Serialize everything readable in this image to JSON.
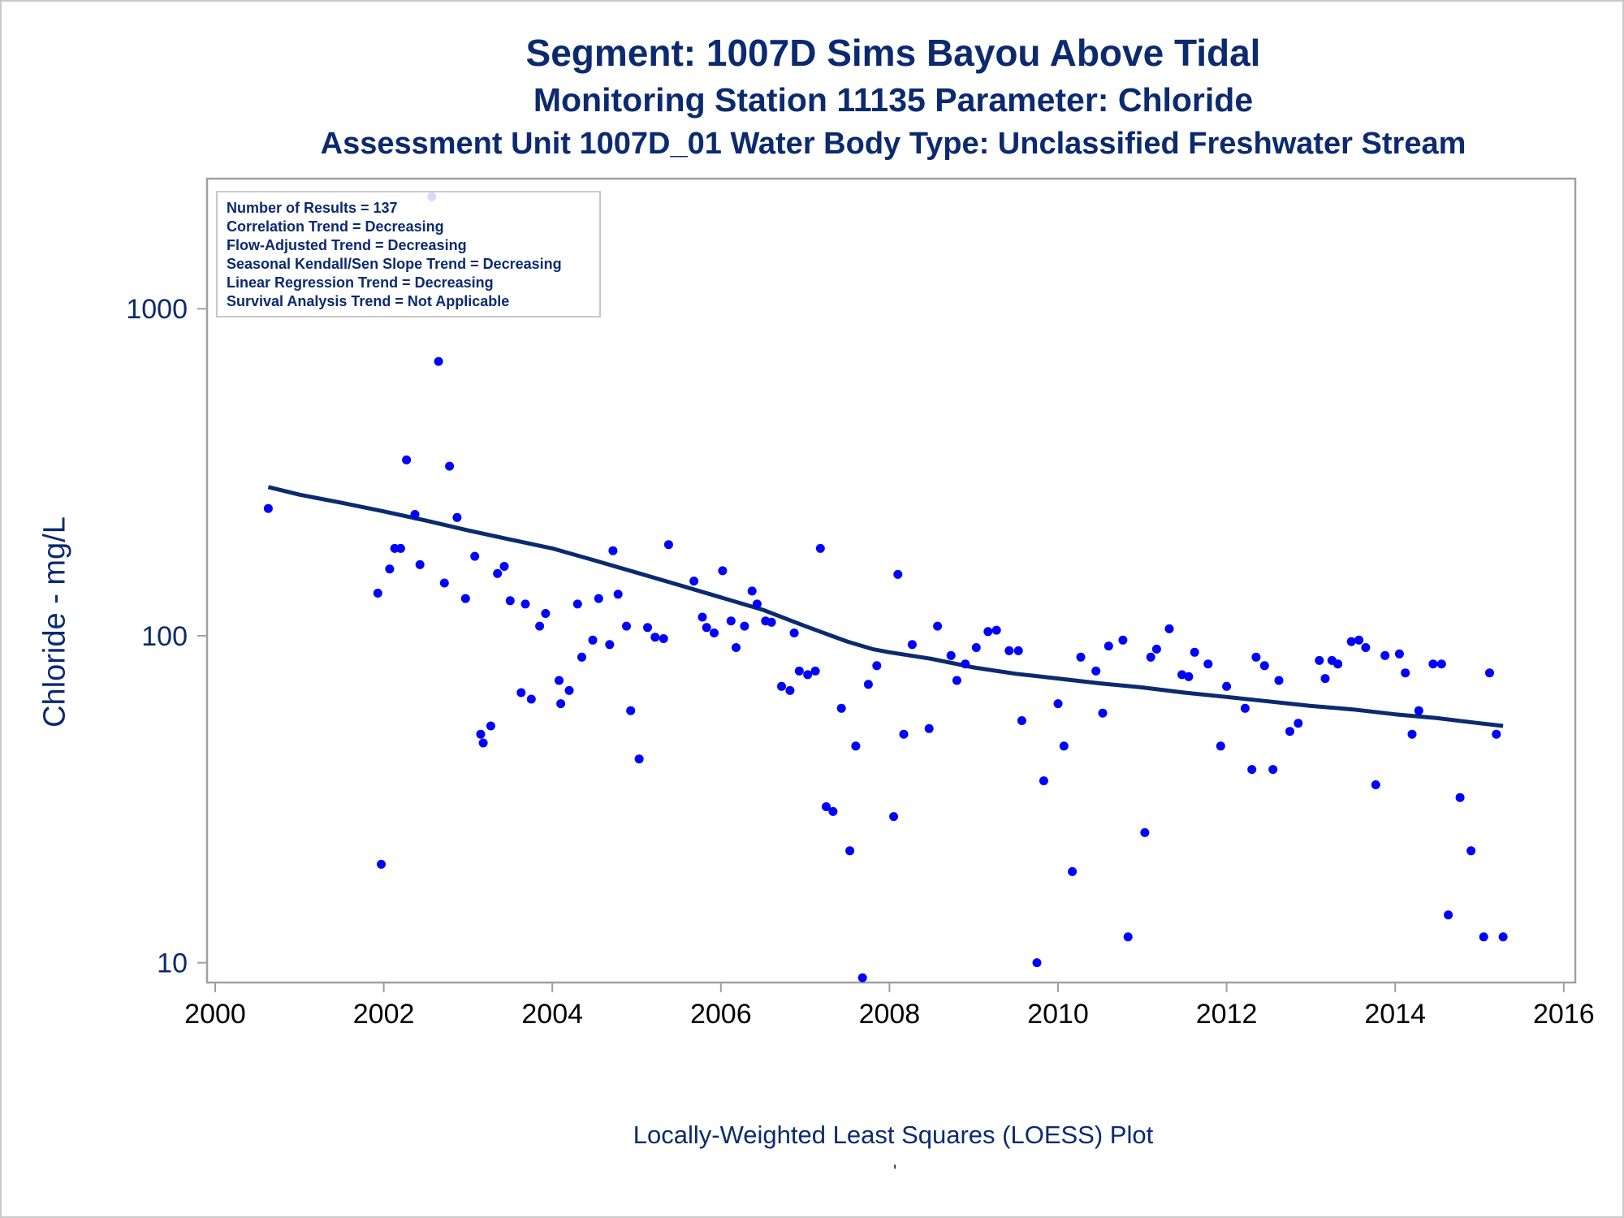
{
  "titles": {
    "line1": "Segment: 1007D  Sims Bayou Above Tidal",
    "line2": "Monitoring Station 11135 Parameter: Chloride",
    "line3": "Assessment Unit 1007D_01   Water Body Type: Unclassified Freshwater Stream"
  },
  "footnote": "Locally-Weighted Least Squares (LOESS) Plot",
  "footmark": "'",
  "colors": {
    "text": "#0b2a6f",
    "points": "#0000ff",
    "loess": "#0b2a6f",
    "frame": "#a0a0a0"
  },
  "chart_data": {
    "type": "scatter",
    "ylabel": "Chloride - mg/L",
    "xlabel": "",
    "yscale": "log",
    "xlim": [
      2000,
      2016
    ],
    "ylim": [
      8.7,
      2500
    ],
    "xticks": [
      "2000",
      "2002",
      "2004",
      "2006",
      "2008",
      "2010",
      "2012",
      "2014",
      "2016"
    ],
    "yticks": [
      "10",
      "100",
      "1000"
    ],
    "legend_placement": "top-left",
    "grid": false,
    "stats_box": [
      "Number of Results = 137",
      "Correlation Trend = Decreasing",
      "Flow-Adjusted Trend = Decreasing",
      "Seasonal Kendall/Sen Slope Trend = Decreasing",
      "Linear Regression Trend = Decreasing",
      "Survival Analysis Trend = Not Applicable"
    ],
    "series": [
      {
        "type": "scatter",
        "points": [
          [
            2000.63,
            245
          ],
          [
            2001.93,
            135
          ],
          [
            2001.97,
            20
          ],
          [
            2002.07,
            160
          ],
          [
            2002.13,
            185
          ],
          [
            2002.2,
            185
          ],
          [
            2002.27,
            345
          ],
          [
            2002.37,
            235
          ],
          [
            2002.43,
            165
          ],
          [
            2002.57,
            2200
          ],
          [
            2002.65,
            690
          ],
          [
            2002.72,
            145
          ],
          [
            2002.78,
            330
          ],
          [
            2002.87,
            230
          ],
          [
            2002.97,
            130
          ],
          [
            2003.08,
            175
          ],
          [
            2003.15,
            50
          ],
          [
            2003.18,
            47
          ],
          [
            2003.27,
            53
          ],
          [
            2003.35,
            155
          ],
          [
            2003.43,
            163
          ],
          [
            2003.5,
            128
          ],
          [
            2003.63,
            67
          ],
          [
            2003.68,
            125
          ],
          [
            2003.75,
            64
          ],
          [
            2003.85,
            107
          ],
          [
            2003.92,
            117
          ],
          [
            2004.08,
            73
          ],
          [
            2004.1,
            62
          ],
          [
            2004.2,
            68
          ],
          [
            2004.3,
            125
          ],
          [
            2004.35,
            86
          ],
          [
            2004.48,
            97
          ],
          [
            2004.55,
            130
          ],
          [
            2004.68,
            94
          ],
          [
            2004.72,
            182
          ],
          [
            2004.78,
            134
          ],
          [
            2004.88,
            107
          ],
          [
            2004.93,
            59
          ],
          [
            2005.03,
            42
          ],
          [
            2005.13,
            106
          ],
          [
            2005.22,
            99
          ],
          [
            2005.32,
            98
          ],
          [
            2005.38,
            190
          ],
          [
            2005.68,
            147
          ],
          [
            2005.78,
            114
          ],
          [
            2005.83,
            106
          ],
          [
            2005.92,
            102
          ],
          [
            2006.02,
            158
          ],
          [
            2006.12,
            111
          ],
          [
            2006.18,
            92
          ],
          [
            2006.28,
            107
          ],
          [
            2006.37,
            137
          ],
          [
            2006.43,
            125
          ],
          [
            2006.53,
            111
          ],
          [
            2006.6,
            110
          ],
          [
            2006.72,
            70
          ],
          [
            2006.82,
            68
          ],
          [
            2006.87,
            102
          ],
          [
            2006.93,
            78
          ],
          [
            2007.03,
            76
          ],
          [
            2007.12,
            78
          ],
          [
            2007.18,
            185
          ],
          [
            2007.25,
            30
          ],
          [
            2007.33,
            29
          ],
          [
            2007.43,
            60
          ],
          [
            2007.53,
            22
          ],
          [
            2007.6,
            46
          ],
          [
            2007.68,
            9
          ],
          [
            2007.75,
            71
          ],
          [
            2007.85,
            81
          ],
          [
            2008.05,
            28
          ],
          [
            2008.1,
            154
          ],
          [
            2008.17,
            50
          ],
          [
            2008.27,
            94
          ],
          [
            2008.47,
            52
          ],
          [
            2008.57,
            107
          ],
          [
            2008.73,
            87
          ],
          [
            2008.8,
            73
          ],
          [
            2008.9,
            82
          ],
          [
            2009.03,
            92
          ],
          [
            2009.17,
            103
          ],
          [
            2009.27,
            104
          ],
          [
            2009.42,
            90
          ],
          [
            2009.53,
            90
          ],
          [
            2009.57,
            55
          ],
          [
            2009.75,
            10
          ],
          [
            2009.83,
            36
          ],
          [
            2010.0,
            62
          ],
          [
            2010.07,
            46
          ],
          [
            2010.17,
            19
          ],
          [
            2010.27,
            86
          ],
          [
            2010.45,
            78
          ],
          [
            2010.53,
            58
          ],
          [
            2010.6,
            93
          ],
          [
            2010.77,
            97
          ],
          [
            2010.83,
            12
          ],
          [
            2011.03,
            25
          ],
          [
            2011.1,
            86
          ],
          [
            2011.17,
            91
          ],
          [
            2011.32,
            105
          ],
          [
            2011.47,
            76
          ],
          [
            2011.55,
            75
          ],
          [
            2011.62,
            89
          ],
          [
            2011.78,
            82
          ],
          [
            2011.93,
            46
          ],
          [
            2012.0,
            70
          ],
          [
            2012.22,
            60
          ],
          [
            2012.3,
            39
          ],
          [
            2012.35,
            86
          ],
          [
            2012.45,
            81
          ],
          [
            2012.55,
            39
          ],
          [
            2012.62,
            73
          ],
          [
            2012.75,
            51
          ],
          [
            2012.85,
            54
          ],
          [
            2013.1,
            84
          ],
          [
            2013.17,
            74
          ],
          [
            2013.25,
            84
          ],
          [
            2013.32,
            82
          ],
          [
            2013.48,
            96
          ],
          [
            2013.57,
            97
          ],
          [
            2013.65,
            92
          ],
          [
            2013.77,
            35
          ],
          [
            2013.88,
            87
          ],
          [
            2014.05,
            88
          ],
          [
            2014.12,
            77
          ],
          [
            2014.2,
            50
          ],
          [
            2014.28,
            59
          ],
          [
            2014.45,
            82
          ],
          [
            2014.55,
            82
          ],
          [
            2014.63,
            14
          ],
          [
            2014.77,
            32
          ],
          [
            2014.9,
            22
          ],
          [
            2015.05,
            12
          ],
          [
            2015.12,
            77
          ],
          [
            2015.2,
            50
          ],
          [
            2015.28,
            12
          ]
        ]
      },
      {
        "type": "line",
        "points": [
          [
            2000.63,
            285
          ],
          [
            2001.0,
            270
          ],
          [
            2001.5,
            255
          ],
          [
            2002.0,
            240
          ],
          [
            2002.5,
            225
          ],
          [
            2003.0,
            210
          ],
          [
            2003.5,
            197
          ],
          [
            2004.0,
            185
          ],
          [
            2004.5,
            170
          ],
          [
            2005.0,
            156
          ],
          [
            2005.5,
            143
          ],
          [
            2006.0,
            131
          ],
          [
            2006.5,
            120
          ],
          [
            2007.0,
            107
          ],
          [
            2007.5,
            96
          ],
          [
            2007.8,
            91
          ],
          [
            2008.0,
            89
          ],
          [
            2008.5,
            85
          ],
          [
            2009.0,
            80
          ],
          [
            2009.5,
            76.5
          ],
          [
            2010.0,
            74
          ],
          [
            2010.5,
            71.5
          ],
          [
            2011.0,
            69.5
          ],
          [
            2011.5,
            67
          ],
          [
            2012.0,
            65
          ],
          [
            2012.5,
            63
          ],
          [
            2013.0,
            61
          ],
          [
            2013.5,
            59.5
          ],
          [
            2014.0,
            57.5
          ],
          [
            2014.5,
            56
          ],
          [
            2015.0,
            54
          ],
          [
            2015.28,
            53
          ]
        ]
      }
    ]
  }
}
